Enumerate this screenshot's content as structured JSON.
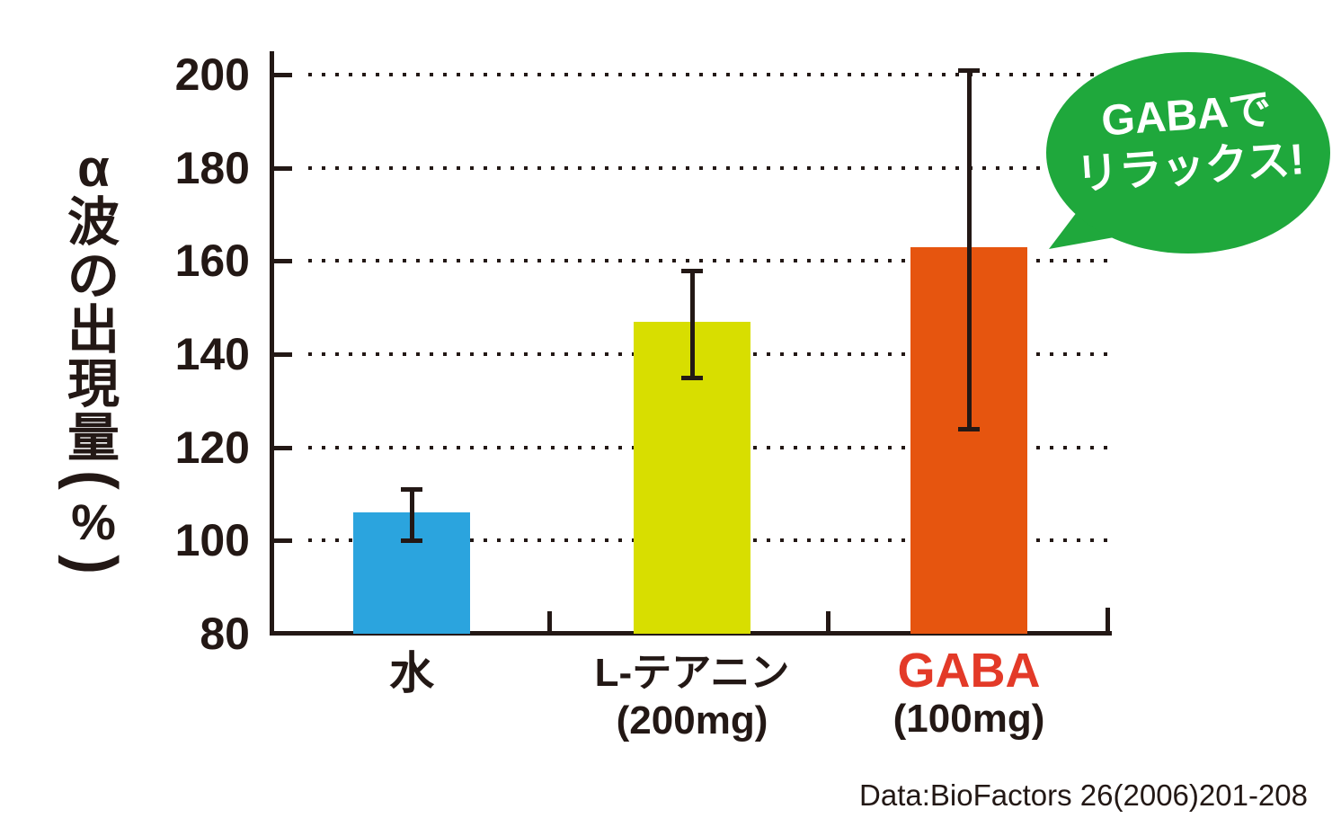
{
  "chart_data": {
    "type": "bar",
    "ylabel": "α波の出現量(%)",
    "ylim": [
      80,
      200
    ],
    "yticks": [
      200,
      180,
      160,
      140,
      120,
      100,
      80
    ],
    "grid": "dotted-horizontal",
    "legend": "none",
    "categories": [
      {
        "lines": [
          "水"
        ],
        "label_color": "#231815"
      },
      {
        "lines": [
          "L-テアニン",
          "(200mg)"
        ],
        "label_color": "#231815"
      },
      {
        "lines": [
          "GABA",
          "(100mg)"
        ],
        "label_color": "#e33a28",
        "sub_color": "#231815"
      }
    ],
    "series": [
      {
        "name": "α波の出現量(%)",
        "values": [
          106,
          147,
          163
        ],
        "error_high": [
          111,
          158,
          201
        ],
        "error_low": [
          100,
          135,
          124
        ],
        "colors": [
          "#2ba4de",
          "#d8de00",
          "#e6550f"
        ]
      }
    ]
  },
  "bubble": {
    "lines": [
      "GABAで",
      "リラックス!"
    ],
    "fill": "#1fa83c",
    "text_color": "#ffffff"
  },
  "source": "Data:BioFactors 26(2006)201-208",
  "colors": {
    "axis": "#231815",
    "background": "#ffffff"
  }
}
